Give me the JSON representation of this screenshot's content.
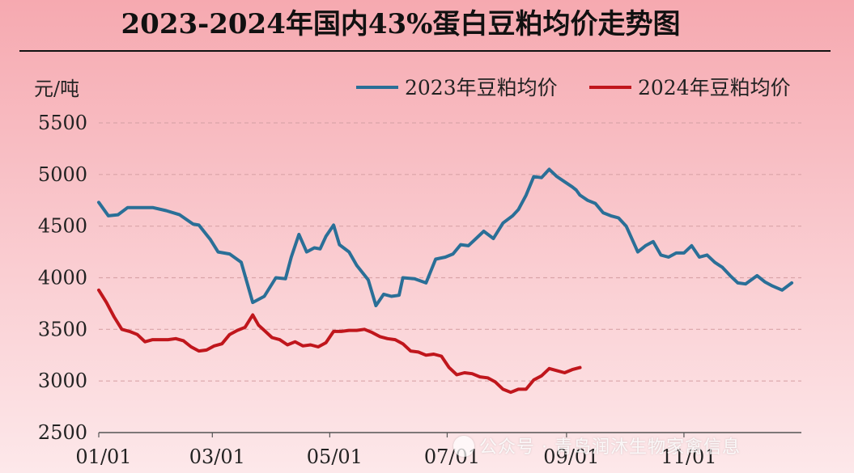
{
  "chart_data": {
    "type": "line",
    "title": "2023-2024年国内43%蛋白豆粕均价走势图",
    "ylabel": "元/吨",
    "ylim": [
      2500,
      5500
    ],
    "yticks": [
      2500,
      3000,
      3500,
      4000,
      4500,
      5000,
      5500
    ],
    "xlim": [
      0,
      365
    ],
    "xtick_labels": [
      "01/01",
      "03/01",
      "05/01",
      "07/01",
      "09/01",
      "11/01"
    ],
    "xtick_days": [
      0,
      59,
      120,
      181,
      243,
      304
    ],
    "grid": "horizontal-dashed",
    "legend_position": "top-right",
    "series": [
      {
        "name": "2023年豆粕均价",
        "color": "#2a6f97",
        "x": [
          0,
          5,
          10,
          15,
          22,
          28,
          35,
          42,
          49,
          52,
          58,
          62,
          68,
          74,
          80,
          86,
          92,
          97,
          100,
          104,
          108,
          112,
          115,
          118,
          122,
          125,
          130,
          134,
          140,
          144,
          148,
          152,
          156,
          158,
          164,
          170,
          175,
          180,
          184,
          188,
          192,
          196,
          200,
          205,
          210,
          215,
          218,
          222,
          226,
          230,
          234,
          238,
          242,
          246,
          248,
          250,
          254,
          258,
          262,
          266,
          270,
          274,
          280,
          284,
          288,
          292,
          296,
          300,
          304,
          308,
          312,
          316,
          320,
          324,
          328,
          332,
          336,
          342,
          346,
          350,
          355,
          360
        ],
        "values": [
          4730,
          4600,
          4610,
          4680,
          4680,
          4680,
          4650,
          4610,
          4520,
          4510,
          4370,
          4250,
          4230,
          4150,
          3760,
          3820,
          4000,
          3990,
          4200,
          4420,
          4250,
          4290,
          4280,
          4400,
          4510,
          4320,
          4250,
          4120,
          3980,
          3730,
          3840,
          3820,
          3830,
          4000,
          3990,
          3950,
          4180,
          4200,
          4230,
          4320,
          4310,
          4380,
          4450,
          4380,
          4530,
          4600,
          4660,
          4800,
          4980,
          4970,
          5050,
          4980,
          4930,
          4880,
          4850,
          4800,
          4750,
          4720,
          4630,
          4600,
          4580,
          4500,
          4250,
          4310,
          4350,
          4220,
          4200,
          4240,
          4240,
          4310,
          4200,
          4220,
          4150,
          4100,
          4020,
          3950,
          3940,
          4020,
          3960,
          3920,
          3880,
          3950
        ]
      },
      {
        "name": "2024年豆粕均价",
        "color": "#c0161c",
        "x": [
          0,
          4,
          8,
          12,
          16,
          20,
          24,
          28,
          32,
          36,
          40,
          44,
          48,
          52,
          56,
          60,
          64,
          68,
          72,
          76,
          80,
          83,
          86,
          90,
          94,
          98,
          102,
          106,
          110,
          114,
          118,
          122,
          126,
          130,
          134,
          138,
          142,
          146,
          150,
          154,
          158,
          162,
          166,
          170,
          174,
          178,
          182,
          186,
          190,
          194,
          198,
          202,
          206,
          210,
          214,
          218,
          222,
          226,
          230,
          234,
          238,
          242,
          246,
          250
        ],
        "values": [
          3880,
          3760,
          3620,
          3500,
          3480,
          3450,
          3380,
          3400,
          3400,
          3400,
          3410,
          3390,
          3330,
          3290,
          3300,
          3340,
          3360,
          3450,
          3490,
          3520,
          3640,
          3540,
          3490,
          3420,
          3400,
          3350,
          3380,
          3340,
          3350,
          3330,
          3370,
          3480,
          3480,
          3490,
          3490,
          3500,
          3470,
          3430,
          3410,
          3400,
          3360,
          3290,
          3280,
          3250,
          3260,
          3240,
          3130,
          3060,
          3080,
          3070,
          3040,
          3030,
          2990,
          2920,
          2890,
          2920,
          2920,
          3010,
          3050,
          3120,
          3100,
          3080,
          3110,
          3130
        ]
      }
    ]
  },
  "watermark": "公众号 · 青岛润沐生物家禽信息"
}
